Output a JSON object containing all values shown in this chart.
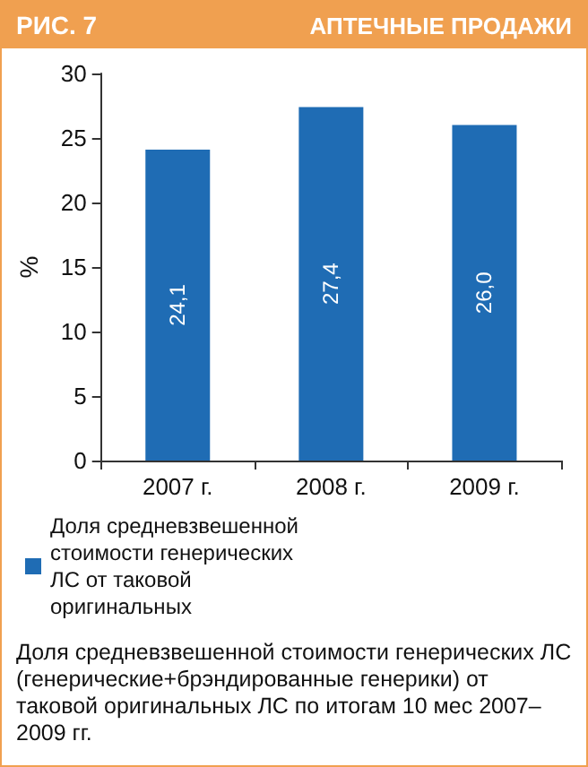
{
  "chart_data": {
    "type": "bar",
    "title": "РИС. 7",
    "subtitle": "АПТЕЧНЫЕ ПРОДАЖИ",
    "ylabel": "%",
    "categories": [
      "2007 г.",
      "2008 г.",
      "2009 г."
    ],
    "series": [
      {
        "name": "Доля средневзвешенной стоимости генерических ЛС от таковой оригинальных",
        "color": "#1f6cb4",
        "values": [
          24.1,
          27.4,
          26.0
        ],
        "value_labels": [
          "24,1",
          "27,4",
          "26,0"
        ]
      }
    ],
    "ylim": [
      0,
      30
    ],
    "yticks": [
      0,
      5,
      10,
      15,
      20,
      25,
      30
    ],
    "grid": false,
    "legend": "bottom",
    "annotations": [
      "Доля средневзвешенной стоимости генерических ЛС (генерические+брэндированные генерики) от таковой оригинальных ЛС по итогам 10 мес 2007–2009 гг."
    ]
  }
}
